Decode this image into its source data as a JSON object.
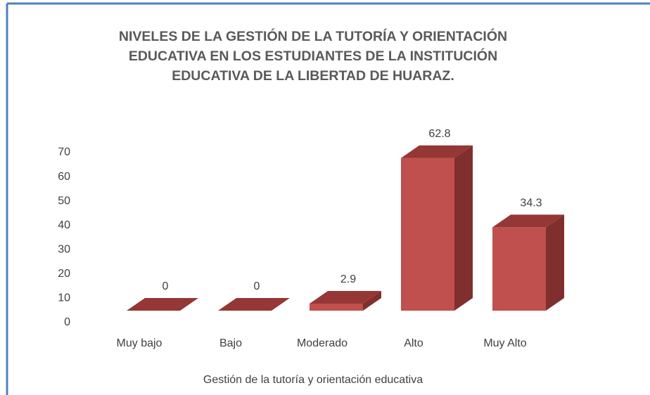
{
  "chart_data": {
    "type": "bar3d",
    "title": "NIVELES DE LA GESTIÓN DE LA TUTORÍA Y ORIENTACIÓN EDUCATIVA EN LOS ESTUDIANTES DE LA INSTITUCIÓN EDUCATIVA DE LA LIBERTAD DE HUARAZ.",
    "x_label": "Gestión de la tutoría y orientación educativa",
    "categories": [
      "Muy bajo",
      "Bajo",
      "Moderado",
      "Alto",
      "Muy Alto"
    ],
    "values": [
      0,
      0,
      2.9,
      62.8,
      34.3
    ],
    "color": "#c0504d",
    "ylim": [
      0,
      70
    ],
    "yticks": [
      0,
      10,
      20,
      30,
      40,
      50,
      60,
      70
    ],
    "grid": false
  }
}
